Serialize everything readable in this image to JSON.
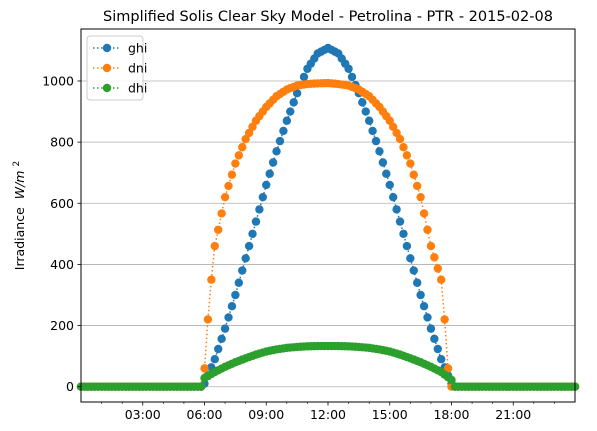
{
  "chart_data": {
    "type": "line",
    "title": "Simplified Solis Clear Sky Model - Petrolina - PTR - 2015-02-08",
    "ylabel": "Irradiance",
    "ylabel_units_base": "W/m",
    "ylabel_units_exp": "2",
    "xlim": [
      "00:00",
      "24:00"
    ],
    "ylim": [
      -50,
      1170
    ],
    "x_ticks": [
      "03:00",
      "06:00",
      "09:00",
      "12:00",
      "15:00",
      "18:00",
      "21:00"
    ],
    "y_ticks": [
      0,
      200,
      400,
      600,
      800,
      1000
    ],
    "grid": "horizontal",
    "legend_position": "top-left",
    "sampling_interval_minutes": 10,
    "series": [
      {
        "name": "ghi",
        "color": "#1f77b4",
        "x": [
          "05:50",
          "06:00",
          "06:30",
          "07:00",
          "07:30",
          "08:00",
          "08:30",
          "09:00",
          "09:30",
          "10:00",
          "10:30",
          "11:00",
          "11:30",
          "12:00",
          "12:30",
          "13:00",
          "13:30",
          "14:00",
          "14:30",
          "15:00",
          "15:30",
          "16:00",
          "16:30",
          "17:00",
          "17:30",
          "18:00",
          "18:10"
        ],
        "y": [
          0,
          10,
          90,
          190,
          300,
          420,
          540,
          660,
          770,
          870,
          960,
          1040,
          1090,
          1108,
          1090,
          1040,
          960,
          870,
          770,
          660,
          540,
          420,
          300,
          190,
          90,
          10,
          0
        ]
      },
      {
        "name": "dni",
        "color": "#ff7f0e",
        "x": [
          "05:50",
          "06:00",
          "06:10",
          "06:20",
          "06:30",
          "07:00",
          "07:30",
          "08:00",
          "08:30",
          "09:00",
          "09:30",
          "10:00",
          "10:30",
          "11:00",
          "11:30",
          "12:00",
          "12:30",
          "13:00",
          "13:30",
          "14:00",
          "14:30",
          "15:00",
          "15:30",
          "16:00",
          "16:30",
          "17:00",
          "17:30",
          "17:40",
          "17:50",
          "18:00",
          "18:10"
        ],
        "y": [
          0,
          60,
          220,
          350,
          460,
          620,
          730,
          810,
          870,
          915,
          950,
          972,
          985,
          990,
          992,
          993,
          990,
          985,
          972,
          950,
          915,
          870,
          810,
          730,
          620,
          460,
          350,
          220,
          60,
          0,
          0
        ]
      },
      {
        "name": "dhi",
        "color": "#2ca02c",
        "x": [
          "05:50",
          "06:00",
          "06:30",
          "07:00",
          "07:30",
          "08:00",
          "08:30",
          "09:00",
          "09:30",
          "10:00",
          "10:30",
          "11:00",
          "11:30",
          "12:00",
          "12:30",
          "13:00",
          "13:30",
          "14:00",
          "14:30",
          "15:00",
          "15:30",
          "16:00",
          "16:30",
          "17:00",
          "17:30",
          "18:00",
          "18:10"
        ],
        "y": [
          0,
          28,
          48,
          65,
          80,
          93,
          105,
          115,
          122,
          127,
          130,
          132,
          133,
          133,
          133,
          132,
          130,
          127,
          122,
          115,
          105,
          93,
          80,
          65,
          48,
          22,
          0
        ]
      }
    ]
  }
}
